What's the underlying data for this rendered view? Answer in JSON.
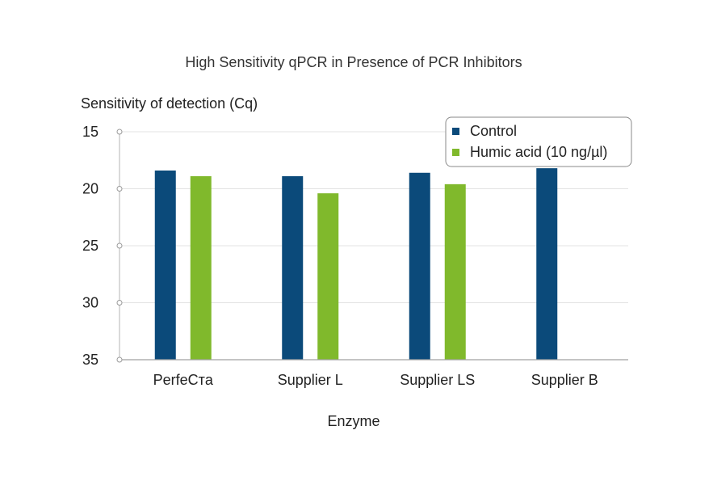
{
  "chart_data": {
    "type": "bar",
    "title": "High Sensitivity qPCR in Presence of PCR Inhibitors",
    "ylabel": "Sensitivity of detection (Cq)",
    "xlabel": "Enzyme",
    "categories": [
      "PerfeCтa",
      "Supplier L",
      "Supplier LS",
      "Supplier B"
    ],
    "y_axis": {
      "min": 15,
      "max": 35,
      "inverted": true,
      "ticks": [
        15,
        20,
        25,
        30,
        35
      ]
    },
    "series": [
      {
        "name": "Control",
        "color": "#0b4a7a",
        "values": [
          18.4,
          18.9,
          18.6,
          18.2
        ]
      },
      {
        "name": "Humic acid (10 ng/µl)",
        "color": "#80b92c",
        "values": [
          18.9,
          20.4,
          19.6,
          null
        ]
      }
    ],
    "grid": true,
    "legend_position": "top-right"
  }
}
